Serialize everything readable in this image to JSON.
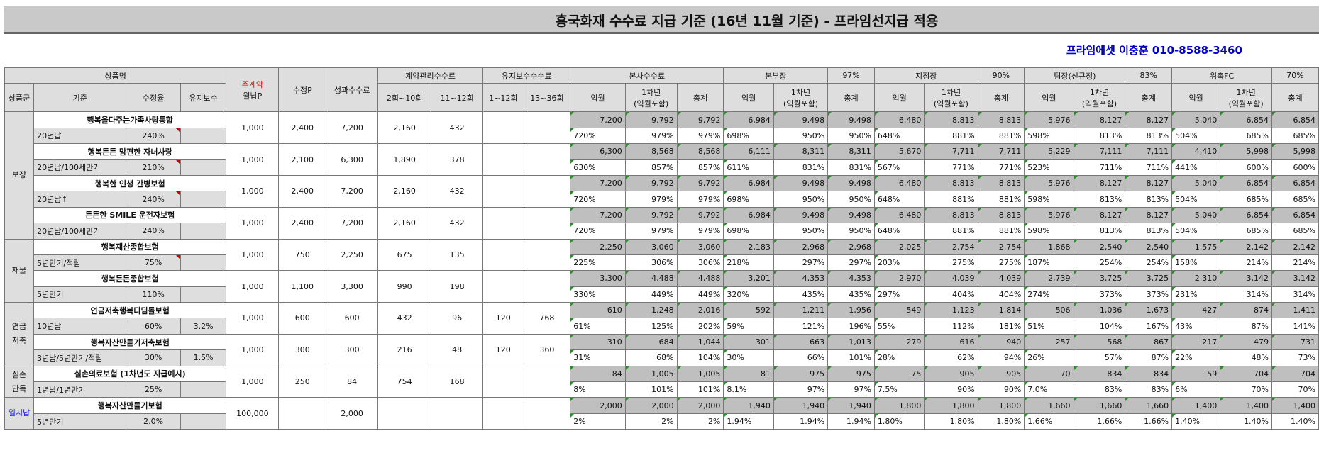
{
  "title": "흥국화재 수수료 지급 기준 (16년 11월 기준) - 프라임선지급 적용",
  "contact": "프라임에셋 이충훈 010-8588-3460",
  "header": {
    "product_name": "상품명",
    "monthly_p_label1": "주계약",
    "monthly_p_label2": "월납P",
    "suJeongP": "수정P",
    "performance_fee": "성과수수료",
    "contract_mgmt_fee": "계약관리수수료",
    "maintenance_fee": "유지보수수수료",
    "hq_fee": "본사수수료",
    "bonbujang": "본부장",
    "bonbujang_pct": "97%",
    "jijeomjang": "지점장",
    "jijeomjang_pct": "90%",
    "timjang": "팀장(신규정)",
    "timjang_pct": "83%",
    "wichok": "위촉FC",
    "wichok_pct": "70%",
    "col_group": "상품군",
    "col_basis": "기준",
    "col_rate": "수정율",
    "col_maint": "유지보수",
    "col_2_10": "2회~10회",
    "col_11_12": "11~12회",
    "col_1_12": "1~12회",
    "col_13_36": "13~36회",
    "col_ikwol": "익월",
    "col_year1a": "1차년",
    "col_year1b": "(익월포함)",
    "col_total": "총계"
  },
  "groups": [
    {
      "name": "보장"
    },
    {
      "name": "재물"
    },
    {
      "name": "연금\n저축"
    },
    {
      "name": "실손\n단독"
    },
    {
      "name": "일시납"
    }
  ],
  "products": [
    {
      "name": "행복을다주는가족사랑통합",
      "basis": "20년납",
      "rate": "240%",
      "maint": "",
      "monthly_p": "1,000",
      "sujeong_p": "2,400",
      "perf": "7,200",
      "c2_10": "2,160",
      "c11_12": "432",
      "m1_12": "",
      "m13_36": "",
      "amounts": [
        "7,200",
        "9,792",
        "9,792",
        "6,984",
        "9,498",
        "9,498",
        "6,480",
        "8,813",
        "8,813",
        "5,976",
        "8,127",
        "8,127",
        "5,040",
        "6,854",
        "6,854"
      ],
      "pcts": [
        "720%",
        "979%",
        "979%",
        "698%",
        "950%",
        "950%",
        "648%",
        "881%",
        "881%",
        "598%",
        "813%",
        "813%",
        "504%",
        "685%",
        "685%"
      ]
    },
    {
      "name": "행복든든 맘편한 자녀사랑",
      "basis": "20년납/100세만기",
      "rate": "210%",
      "maint": "",
      "monthly_p": "1,000",
      "sujeong_p": "2,100",
      "perf": "6,300",
      "c2_10": "1,890",
      "c11_12": "378",
      "m1_12": "",
      "m13_36": "",
      "amounts": [
        "6,300",
        "8,568",
        "8,568",
        "6,111",
        "8,311",
        "8,311",
        "5,670",
        "7,711",
        "7,711",
        "5,229",
        "7,111",
        "7,111",
        "4,410",
        "5,998",
        "5,998"
      ],
      "pcts": [
        "630%",
        "857%",
        "857%",
        "611%",
        "831%",
        "831%",
        "567%",
        "771%",
        "771%",
        "523%",
        "711%",
        "711%",
        "441%",
        "600%",
        "600%"
      ]
    },
    {
      "name": "행복한 인생 간병보험",
      "basis": "20년납↑",
      "rate": "240%",
      "maint": "",
      "monthly_p": "1,000",
      "sujeong_p": "2,400",
      "perf": "7,200",
      "c2_10": "2,160",
      "c11_12": "432",
      "m1_12": "",
      "m13_36": "",
      "amounts": [
        "7,200",
        "9,792",
        "9,792",
        "6,984",
        "9,498",
        "9,498",
        "6,480",
        "8,813",
        "8,813",
        "5,976",
        "8,127",
        "8,127",
        "5,040",
        "6,854",
        "6,854"
      ],
      "pcts": [
        "720%",
        "979%",
        "979%",
        "698%",
        "950%",
        "950%",
        "648%",
        "881%",
        "881%",
        "598%",
        "813%",
        "813%",
        "504%",
        "685%",
        "685%"
      ]
    },
    {
      "name": "든든한 SMILE 운전자보험",
      "basis": "20년납/100세만기",
      "rate": "240%",
      "maint": "",
      "monthly_p": "1,000",
      "sujeong_p": "2,400",
      "perf": "7,200",
      "c2_10": "2,160",
      "c11_12": "432",
      "m1_12": "",
      "m13_36": "",
      "amounts": [
        "7,200",
        "9,792",
        "9,792",
        "6,984",
        "9,498",
        "9,498",
        "6,480",
        "8,813",
        "8,813",
        "5,976",
        "8,127",
        "8,127",
        "5,040",
        "6,854",
        "6,854"
      ],
      "pcts": [
        "720%",
        "979%",
        "979%",
        "698%",
        "950%",
        "950%",
        "648%",
        "881%",
        "881%",
        "598%",
        "813%",
        "813%",
        "504%",
        "685%",
        "685%"
      ]
    },
    {
      "name": "행복재산종합보험",
      "basis": "5년만기/적립",
      "rate": "75%",
      "maint": "",
      "monthly_p": "1,000",
      "sujeong_p": "750",
      "perf": "2,250",
      "c2_10": "675",
      "c11_12": "135",
      "m1_12": "",
      "m13_36": "",
      "amounts": [
        "2,250",
        "3,060",
        "3,060",
        "2,183",
        "2,968",
        "2,968",
        "2,025",
        "2,754",
        "2,754",
        "1,868",
        "2,540",
        "2,540",
        "1,575",
        "2,142",
        "2,142"
      ],
      "pcts": [
        "225%",
        "306%",
        "306%",
        "218%",
        "297%",
        "297%",
        "203%",
        "275%",
        "275%",
        "187%",
        "254%",
        "254%",
        "158%",
        "214%",
        "214%"
      ]
    },
    {
      "name": "행복든든종합보험",
      "basis": "5년만기",
      "rate": "110%",
      "maint": "",
      "monthly_p": "1,000",
      "sujeong_p": "1,100",
      "perf": "3,300",
      "c2_10": "990",
      "c11_12": "198",
      "m1_12": "",
      "m13_36": "",
      "amounts": [
        "3,300",
        "4,488",
        "4,488",
        "3,201",
        "4,353",
        "4,353",
        "2,970",
        "4,039",
        "4,039",
        "2,739",
        "3,725",
        "3,725",
        "2,310",
        "3,142",
        "3,142"
      ],
      "pcts": [
        "330%",
        "449%",
        "449%",
        "320%",
        "435%",
        "435%",
        "297%",
        "404%",
        "404%",
        "274%",
        "373%",
        "373%",
        "231%",
        "314%",
        "314%"
      ]
    },
    {
      "name": "연금저축행복디딤돌보험",
      "basis": "10년납",
      "rate": "60%",
      "maint": "3.2%",
      "monthly_p": "1,000",
      "sujeong_p": "600",
      "perf": "600",
      "c2_10": "432",
      "c11_12": "96",
      "m1_12": "120",
      "m13_36": "768",
      "amounts": [
        "610",
        "1,248",
        "2,016",
        "592",
        "1,211",
        "1,956",
        "549",
        "1,123",
        "1,814",
        "506",
        "1,036",
        "1,673",
        "427",
        "874",
        "1,411"
      ],
      "pcts": [
        "61%",
        "125%",
        "202%",
        "59%",
        "121%",
        "196%",
        "55%",
        "112%",
        "181%",
        "51%",
        "104%",
        "167%",
        "43%",
        "87%",
        "141%"
      ]
    },
    {
      "name": "행복자산만들기저축보험",
      "basis": "3년납/5년만기/적립",
      "rate": "30%",
      "maint": "1.5%",
      "monthly_p": "1,000",
      "sujeong_p": "300",
      "perf": "300",
      "c2_10": "216",
      "c11_12": "48",
      "m1_12": "120",
      "m13_36": "360",
      "amounts": [
        "310",
        "684",
        "1,044",
        "301",
        "663",
        "1,013",
        "279",
        "616",
        "940",
        "257",
        "568",
        "867",
        "217",
        "479",
        "731"
      ],
      "pcts": [
        "31%",
        "68%",
        "104%",
        "30%",
        "66%",
        "101%",
        "28%",
        "62%",
        "94%",
        "26%",
        "57%",
        "87%",
        "22%",
        "48%",
        "73%"
      ]
    },
    {
      "name": "실손의료보험 (1차년도 지급예시)",
      "basis": "1년납/1년만기",
      "rate": "25%",
      "maint": "",
      "monthly_p": "1,000",
      "sujeong_p": "250",
      "perf": "84",
      "c2_10": "754",
      "c11_12": "168",
      "m1_12": "",
      "m13_36": "",
      "amounts": [
        "84",
        "1,005",
        "1,005",
        "81",
        "975",
        "975",
        "75",
        "905",
        "905",
        "70",
        "834",
        "834",
        "59",
        "704",
        "704"
      ],
      "pcts": [
        "8%",
        "101%",
        "101%",
        "8.1%",
        "97%",
        "97%",
        "7.5%",
        "90%",
        "90%",
        "7.0%",
        "83%",
        "83%",
        "6%",
        "70%",
        "70%"
      ]
    },
    {
      "name": "행복자산만들기보험",
      "basis": "5년만기",
      "rate": "2.0%",
      "maint": "",
      "monthly_p": "100,000",
      "sujeong_p": "",
      "perf": "2,000",
      "c2_10": "",
      "c11_12": "",
      "m1_12": "",
      "m13_36": "",
      "amounts": [
        "2,000",
        "2,000",
        "2,000",
        "1,940",
        "1,940",
        "1,940",
        "1,800",
        "1,800",
        "1,800",
        "1,660",
        "1,660",
        "1,660",
        "1,400",
        "1,400",
        "1,400"
      ],
      "pcts": [
        "2%",
        "2%",
        "2%",
        "1.94%",
        "1.94%",
        "1.94%",
        "1.80%",
        "1.80%",
        "1.80%",
        "1.66%",
        "1.66%",
        "1.66%",
        "1.40%",
        "1.40%",
        "1.40%"
      ]
    }
  ]
}
